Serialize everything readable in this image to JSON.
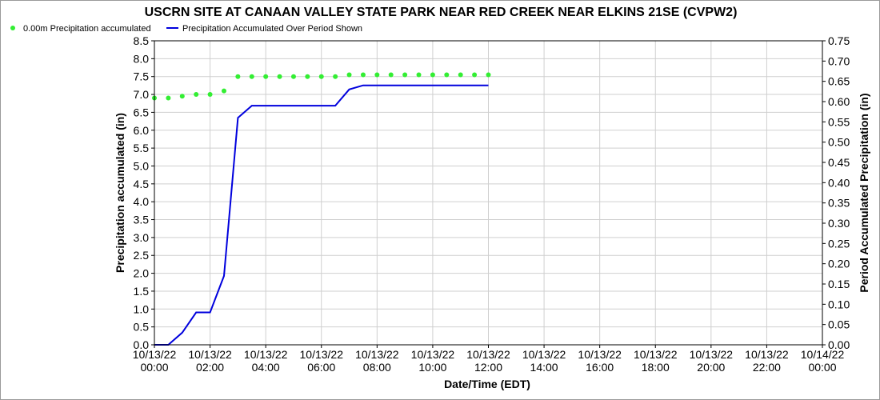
{
  "chart_data": {
    "type": "line",
    "title": "USCRN SITE AT CANAAN VALLEY STATE PARK NEAR RED CREEK NEAR ELKINS 21SE (CVPW2)",
    "xlabel": "Date/Time (EDT)",
    "ylabel": "Precipitation accumulated (in)",
    "y2label": "Period Accumulated Precipitation (in)",
    "xlim_hours": [
      0,
      48
    ],
    "ylim": [
      0,
      8.5
    ],
    "y2lim": [
      0,
      0.75
    ],
    "grid": true,
    "legend_position": "top-left",
    "x_tick_labels": [
      [
        "10/13/22",
        "00:00"
      ],
      [
        "10/13/22",
        "02:00"
      ],
      [
        "10/13/22",
        "04:00"
      ],
      [
        "10/13/22",
        "06:00"
      ],
      [
        "10/13/22",
        "08:00"
      ],
      [
        "10/13/22",
        "10:00"
      ],
      [
        "10/13/22",
        "12:00"
      ],
      [
        "10/13/22",
        "14:00"
      ],
      [
        "10/13/22",
        "16:00"
      ],
      [
        "10/13/22",
        "18:00"
      ],
      [
        "10/13/22",
        "20:00"
      ],
      [
        "10/13/22",
        "22:00"
      ],
      [
        "10/14/22",
        "00:00"
      ]
    ],
    "y_ticks": [
      "0.0",
      "0.5",
      "1.0",
      "1.5",
      "2.0",
      "2.5",
      "3.0",
      "3.5",
      "4.0",
      "4.5",
      "5.0",
      "5.5",
      "6.0",
      "6.5",
      "7.0",
      "7.5",
      "8.0",
      "8.5"
    ],
    "y2_ticks": [
      "0.00",
      "0.05",
      "0.10",
      "0.15",
      "0.20",
      "0.25",
      "0.30",
      "0.35",
      "0.40",
      "0.45",
      "0.50",
      "0.55",
      "0.60",
      "0.65",
      "0.70",
      "0.75"
    ],
    "series": [
      {
        "name": "0.00m Precipitation accumulated",
        "style": "markers",
        "color": "#33ee33",
        "axis": "left",
        "x": [
          "10/13/22 00:00",
          "10/13/22 01:00",
          "10/13/22 02:00",
          "10/13/22 03:00",
          "10/13/22 04:00",
          "10/13/22 05:00",
          "10/13/22 06:00",
          "10/13/22 07:00",
          "10/13/22 08:00",
          "10/13/22 09:00",
          "10/13/22 10:00",
          "10/13/22 11:00",
          "10/13/22 12:00",
          "10/13/22 13:00",
          "10/13/22 14:00",
          "10/13/22 15:00",
          "10/13/22 16:00",
          "10/13/22 17:00",
          "10/13/22 18:00",
          "10/13/22 19:00",
          "10/13/22 20:00",
          "10/13/22 21:00",
          "10/13/22 22:00",
          "10/13/22 23:00",
          "10/14/22 00:00"
        ],
        "values": [
          6.9,
          6.9,
          6.95,
          7.0,
          7.0,
          7.1,
          7.5,
          7.5,
          7.5,
          7.5,
          7.5,
          7.5,
          7.5,
          7.5,
          7.55,
          7.55,
          7.55,
          7.55,
          7.55,
          7.55,
          7.55,
          7.55,
          7.55,
          7.55,
          7.55
        ]
      },
      {
        "name": "Precipitation Accumulated Over Period Shown",
        "style": "line",
        "color": "#0000dd",
        "axis": "right",
        "x": [
          "10/13/22 00:00",
          "10/13/22 01:00",
          "10/13/22 02:00",
          "10/13/22 03:00",
          "10/13/22 04:00",
          "10/13/22 05:00",
          "10/13/22 06:00",
          "10/13/22 07:00",
          "10/13/22 08:00",
          "10/13/22 09:00",
          "10/13/22 10:00",
          "10/13/22 11:00",
          "10/13/22 12:00",
          "10/13/22 13:00",
          "10/13/22 14:00",
          "10/13/22 15:00",
          "10/13/22 16:00",
          "10/13/22 17:00",
          "10/13/22 18:00",
          "10/13/22 19:00",
          "10/13/22 20:00",
          "10/13/22 21:00",
          "10/13/22 22:00",
          "10/13/22 23:00",
          "10/14/22 00:00"
        ],
        "values": [
          0.0,
          0.0,
          0.03,
          0.08,
          0.08,
          0.17,
          0.56,
          0.59,
          0.59,
          0.59,
          0.59,
          0.59,
          0.59,
          0.59,
          0.63,
          0.64,
          0.64,
          0.64,
          0.64,
          0.64,
          0.64,
          0.64,
          0.64,
          0.64,
          0.64
        ]
      }
    ]
  }
}
